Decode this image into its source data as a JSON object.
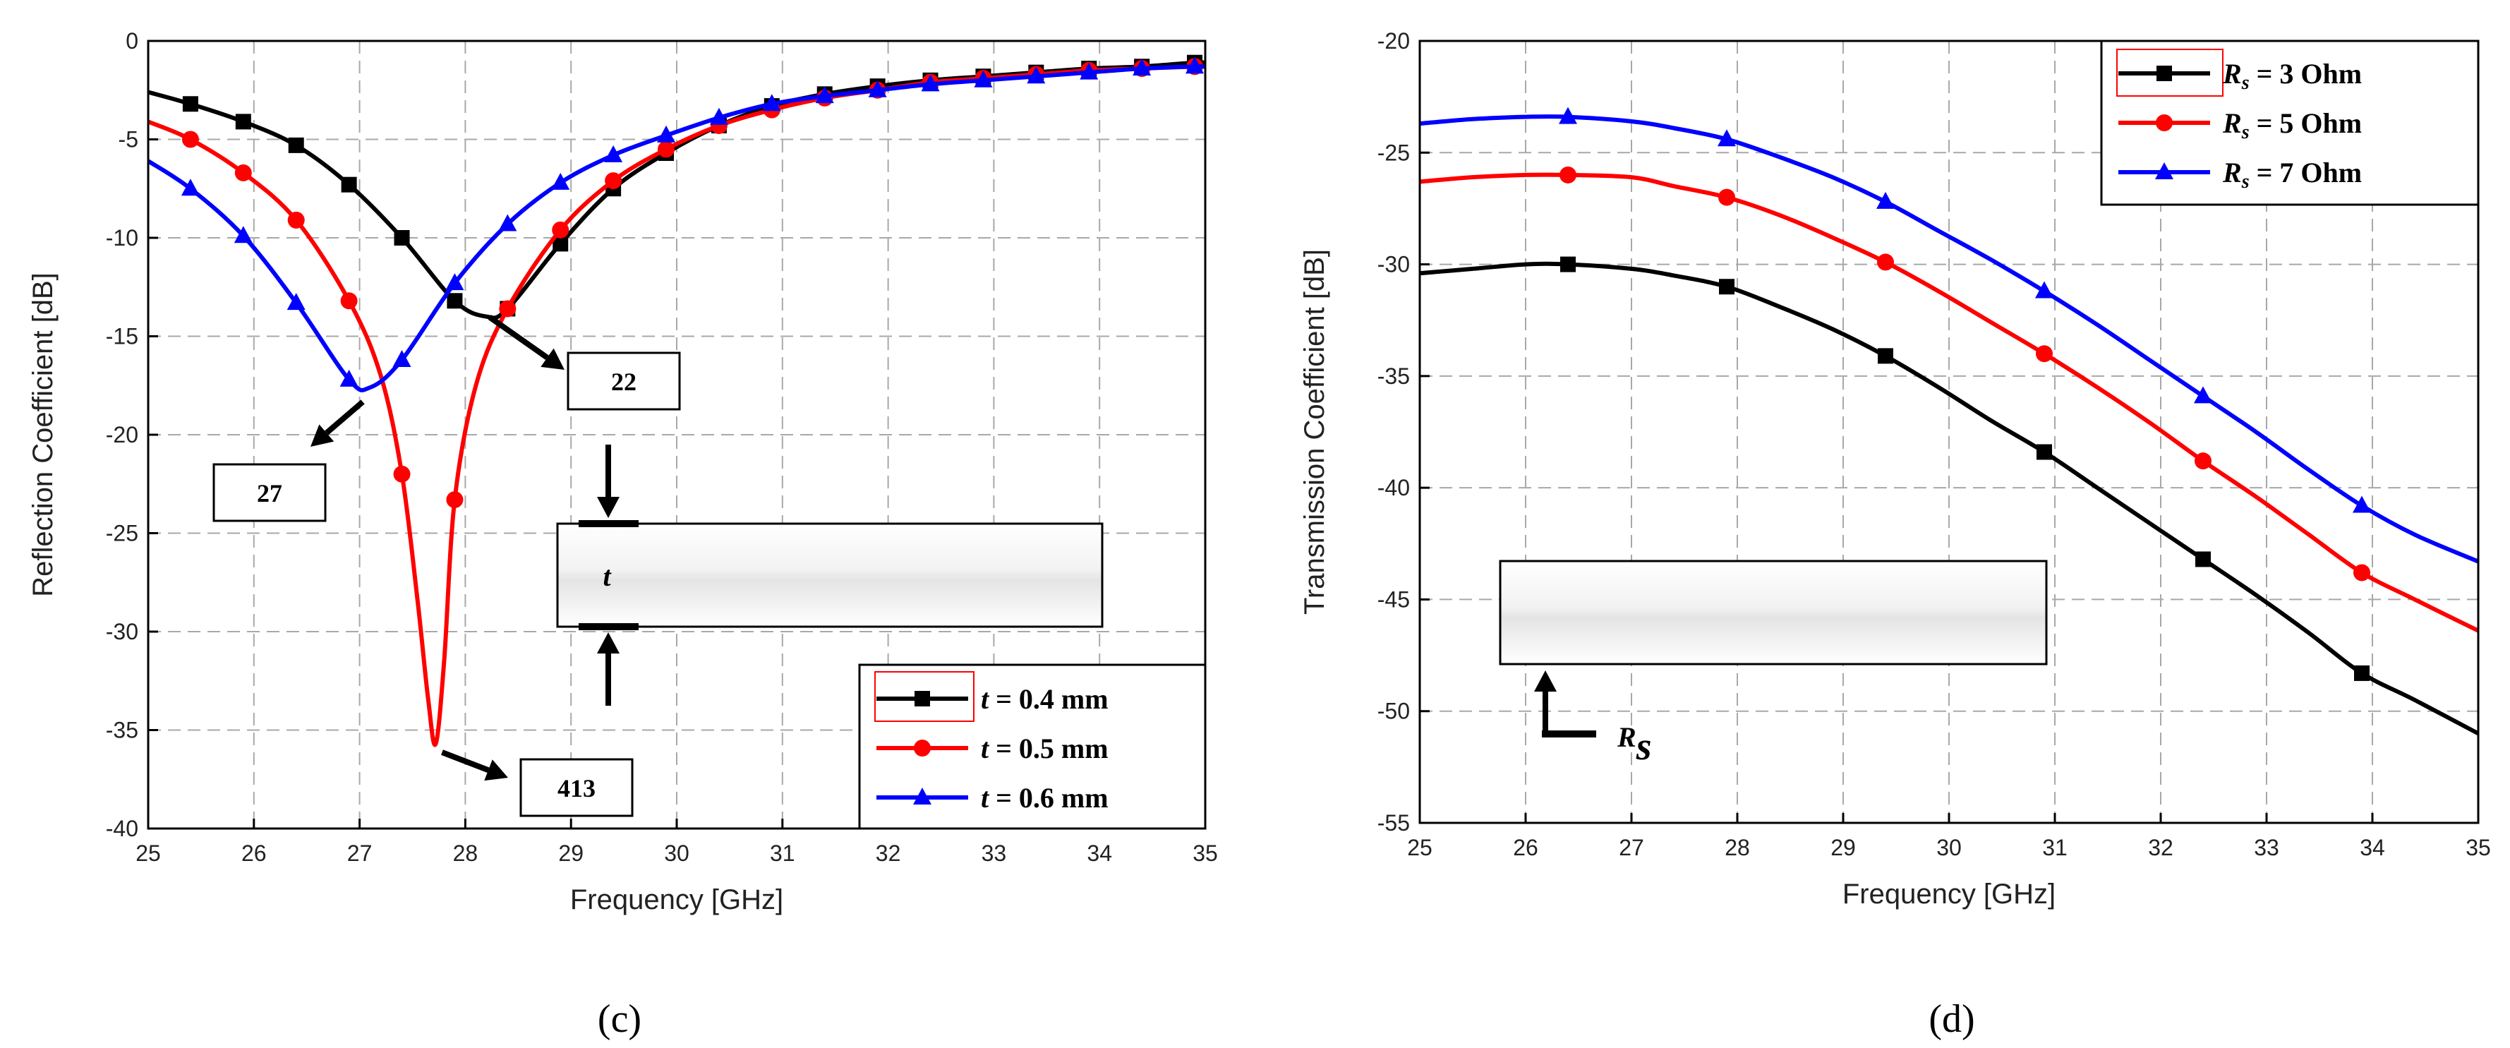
{
  "figure": {
    "caption_left": "(c)",
    "caption_right": "(d)"
  },
  "chart_data": [
    {
      "id": "c",
      "type": "line",
      "title": "",
      "xlabel": "Frequency [GHz]",
      "ylabel": "Reflection Coefficient [dB]",
      "xlim": [
        25,
        35
      ],
      "ylim": [
        -40,
        0
      ],
      "xticks": [
        25,
        26,
        27,
        28,
        29,
        30,
        31,
        32,
        33,
        34,
        35
      ],
      "yticks": [
        0,
        -5,
        -10,
        -15,
        -20,
        -25,
        -30,
        -35,
        -40
      ],
      "grid": true,
      "legend_position": "bottom-right",
      "legend_var": "t",
      "series": [
        {
          "name": "t = 0.4 mm",
          "var": "t",
          "rest": " = 0.4 mm",
          "color": "#000000",
          "marker": "square",
          "x": [
            25.0,
            25.4,
            25.9,
            26.4,
            26.9,
            27.4,
            27.9,
            28.2,
            28.4,
            28.9,
            29.4,
            29.9,
            30.4,
            30.9,
            31.4,
            31.9,
            32.4,
            32.9,
            33.4,
            33.9,
            34.4,
            34.9,
            35.0
          ],
          "y": [
            -2.6,
            -3.2,
            -4.1,
            -5.3,
            -7.3,
            -10.0,
            -13.2,
            -14.0,
            -13.6,
            -10.3,
            -7.5,
            -5.7,
            -4.3,
            -3.3,
            -2.7,
            -2.3,
            -2.0,
            -1.8,
            -1.6,
            -1.4,
            -1.3,
            -1.1,
            -1.1
          ],
          "marker_x": [
            25.4,
            25.9,
            26.4,
            26.9,
            27.4,
            27.9,
            28.4,
            28.9,
            29.4,
            29.9,
            30.4,
            30.9,
            31.4,
            31.9,
            32.4,
            32.9,
            33.4,
            33.9,
            34.4,
            34.9
          ]
        },
        {
          "name": "t = 0.5 mm",
          "var": "t",
          "rest": " = 0.5 mm",
          "color": "#ff0000",
          "marker": "circle",
          "x": [
            25.0,
            25.4,
            25.9,
            26.4,
            26.9,
            27.2,
            27.4,
            27.55,
            27.65,
            27.72,
            27.8,
            27.9,
            28.1,
            28.4,
            28.9,
            29.4,
            29.9,
            30.4,
            30.9,
            31.4,
            31.9,
            32.4,
            32.9,
            33.4,
            33.9,
            34.4,
            34.9,
            35.0
          ],
          "y": [
            -4.1,
            -5.0,
            -6.7,
            -9.1,
            -13.2,
            -17.0,
            -22.0,
            -28.5,
            -33.5,
            -35.7,
            -31.5,
            -23.3,
            -17.5,
            -13.6,
            -9.6,
            -7.1,
            -5.5,
            -4.3,
            -3.5,
            -2.9,
            -2.5,
            -2.1,
            -1.9,
            -1.7,
            -1.5,
            -1.4,
            -1.3,
            -1.3
          ],
          "marker_x": [
            25.4,
            25.9,
            26.4,
            26.9,
            27.4,
            27.9,
            28.4,
            28.9,
            29.4,
            29.9,
            30.4,
            30.9,
            31.4,
            31.9,
            32.4,
            32.9,
            33.4,
            33.9,
            34.4,
            34.9
          ]
        },
        {
          "name": "t = 0.6 mm",
          "var": "t",
          "rest": " = 0.6 mm",
          "color": "#0000ff",
          "marker": "triangle",
          "x": [
            25.0,
            25.4,
            25.9,
            26.4,
            26.9,
            27.1,
            27.4,
            27.9,
            28.4,
            28.9,
            29.4,
            29.9,
            30.4,
            30.9,
            31.4,
            31.9,
            32.4,
            32.9,
            33.4,
            33.9,
            34.4,
            34.9,
            35.0
          ],
          "y": [
            -6.1,
            -7.5,
            -9.9,
            -13.3,
            -17.2,
            -17.6,
            -16.2,
            -12.3,
            -9.3,
            -7.2,
            -5.8,
            -4.8,
            -3.9,
            -3.2,
            -2.8,
            -2.5,
            -2.2,
            -2.0,
            -1.8,
            -1.6,
            -1.4,
            -1.3,
            -1.3
          ],
          "marker_x": [
            25.4,
            25.9,
            26.4,
            26.9,
            27.4,
            27.9,
            28.4,
            28.9,
            29.4,
            29.9,
            30.4,
            30.9,
            31.4,
            31.9,
            32.4,
            32.9,
            33.4,
            33.9,
            34.4,
            34.9
          ]
        }
      ],
      "annotations": [
        {
          "text": "22",
          "x": 28.3,
          "y": -13.8
        },
        {
          "text": "27",
          "x": 27.0,
          "y": -18.0
        },
        {
          "text": "413",
          "x": 27.75,
          "y": -35.4
        }
      ],
      "inset": {
        "symbol": "t"
      }
    },
    {
      "id": "d",
      "type": "line",
      "title": "",
      "xlabel": "Frequency [GHz]",
      "ylabel": "Transmission Coefficient [dB]",
      "xlim": [
        25,
        35
      ],
      "ylim": [
        -55,
        -20
      ],
      "xticks": [
        25,
        26,
        27,
        28,
        29,
        30,
        31,
        32,
        33,
        34,
        35
      ],
      "yticks": [
        -20,
        -25,
        -30,
        -35,
        -40,
        -45,
        -50,
        -55
      ],
      "grid": true,
      "legend_position": "top-right",
      "legend_var": "R",
      "series": [
        {
          "name": "Rs = 3 Ohm",
          "var": "R",
          "sub": "s",
          "rest": " = 3 Ohm",
          "color": "#000000",
          "marker": "square",
          "x": [
            25.0,
            25.5,
            26.0,
            26.4,
            27.0,
            27.4,
            27.9,
            28.4,
            28.9,
            29.4,
            29.9,
            30.4,
            30.9,
            31.4,
            31.9,
            32.4,
            32.9,
            33.4,
            33.9,
            34.4,
            35.0
          ],
          "y": [
            -30.4,
            -30.2,
            -30.0,
            -30.0,
            -30.2,
            -30.5,
            -31.0,
            -31.9,
            -32.9,
            -34.1,
            -35.5,
            -37.0,
            -38.4,
            -40.0,
            -41.6,
            -43.2,
            -44.8,
            -46.5,
            -48.3,
            -49.5,
            -51.0
          ],
          "marker_x": [
            26.4,
            27.9,
            29.4,
            30.9,
            32.4,
            33.9
          ]
        },
        {
          "name": "Rs = 5 Ohm",
          "var": "R",
          "sub": "s",
          "rest": " = 5 Ohm",
          "color": "#ff0000",
          "marker": "circle",
          "x": [
            25.0,
            25.5,
            26.0,
            26.4,
            27.0,
            27.4,
            27.9,
            28.4,
            28.9,
            29.4,
            29.9,
            30.4,
            30.9,
            31.4,
            31.9,
            32.4,
            32.9,
            33.4,
            33.9,
            34.4,
            35.0
          ],
          "y": [
            -26.3,
            -26.1,
            -26.0,
            -26.0,
            -26.1,
            -26.5,
            -27.0,
            -27.8,
            -28.8,
            -29.9,
            -31.2,
            -32.6,
            -34.0,
            -35.5,
            -37.1,
            -38.8,
            -40.4,
            -42.1,
            -43.8,
            -45.0,
            -46.4
          ],
          "marker_x": [
            26.4,
            27.9,
            29.4,
            30.9,
            32.4,
            33.9
          ]
        },
        {
          "name": "Rs = 7 Ohm",
          "var": "R",
          "sub": "s",
          "rest": " = 7 Ohm",
          "color": "#0000ff",
          "marker": "triangle",
          "x": [
            25.0,
            25.5,
            26.0,
            26.4,
            27.0,
            27.4,
            27.9,
            28.4,
            28.9,
            29.4,
            29.9,
            30.4,
            30.9,
            31.4,
            31.9,
            32.4,
            32.9,
            33.4,
            33.9,
            34.4,
            35.0
          ],
          "y": [
            -23.7,
            -23.5,
            -23.4,
            -23.4,
            -23.6,
            -23.9,
            -24.4,
            -25.2,
            -26.1,
            -27.2,
            -28.5,
            -29.8,
            -31.2,
            -32.7,
            -34.3,
            -35.9,
            -37.5,
            -39.2,
            -40.8,
            -42.1,
            -43.3
          ],
          "marker_x": [
            26.4,
            27.9,
            29.4,
            30.9,
            32.4,
            33.9
          ]
        }
      ],
      "inset": {
        "symbol": "R",
        "sub": "s"
      }
    }
  ]
}
